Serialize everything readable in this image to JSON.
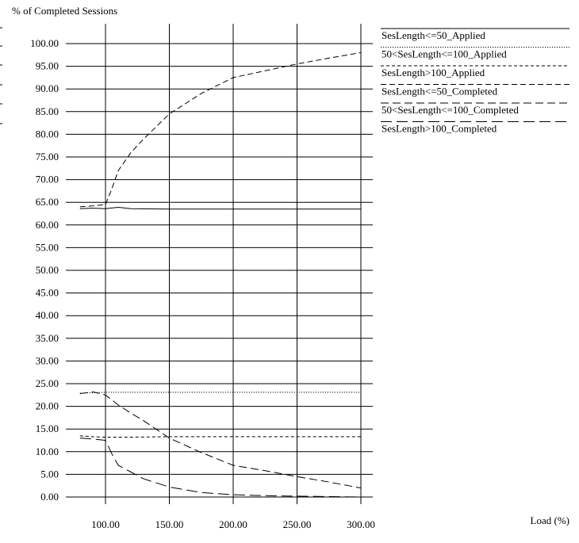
{
  "chart_data": {
    "type": "line",
    "title": "",
    "ylabel": "% of Completed Sessions",
    "xlabel": "Load (%)",
    "xlim": [
      72,
      305
    ],
    "ylim": [
      -2,
      103
    ],
    "x_ticks": [
      "100.00",
      "150.00",
      "200.00",
      "250.00",
      "300.00"
    ],
    "x_tick_values": [
      100,
      150,
      200,
      250,
      300
    ],
    "y_ticks": [
      "100.00",
      "95.00",
      "90.00",
      "85.00",
      "80.00",
      "75.00",
      "70.00",
      "65.00",
      "60.00",
      "55.00",
      "50.00",
      "45.00",
      "40.00",
      "35.00",
      "30.00",
      "25.00",
      "20.00",
      "15.00",
      "10.00",
      "5.00",
      "0.00"
    ],
    "y_tick_values": [
      100,
      95,
      90,
      85,
      80,
      75,
      70,
      65,
      60,
      55,
      50,
      45,
      40,
      35,
      30,
      25,
      20,
      15,
      10,
      5,
      0
    ],
    "grid": "vertical and horizontal",
    "legend_position": "right",
    "series": [
      {
        "name": "SesLength<=50_Applied",
        "style": "solid",
        "x": [
          80,
          90,
          100,
          110,
          120,
          150,
          200,
          250,
          300
        ],
        "y": [
          63.6,
          63.7,
          63.6,
          63.9,
          63.6,
          63.5,
          63.5,
          63.5,
          63.5
        ]
      },
      {
        "name": "50<SesLength<=100_Applied",
        "style": "dotted",
        "x": [
          80,
          90,
          100,
          120,
          150,
          200,
          250,
          300
        ],
        "y": [
          22.9,
          23.0,
          23.1,
          23.1,
          23.1,
          23.1,
          23.1,
          23.1
        ]
      },
      {
        "name": "SesLength>100_Applied",
        "style": "short-dash",
        "x": [
          80,
          90,
          100,
          120,
          150,
          200,
          250,
          300
        ],
        "y": [
          13.5,
          13.3,
          13.2,
          13.2,
          13.3,
          13.3,
          13.3,
          13.3
        ]
      },
      {
        "name": "SesLength<=50_Completed",
        "style": "dash",
        "x": [
          80,
          90,
          100,
          105,
          110,
          120,
          130,
          150,
          175,
          200,
          225,
          250,
          275,
          300
        ],
        "y": [
          64.0,
          64.2,
          64.5,
          68.0,
          72.0,
          76.0,
          79.0,
          84.5,
          89.0,
          92.5,
          94.0,
          95.5,
          96.8,
          98.0
        ]
      },
      {
        "name": "50<SesLength<=100_Completed",
        "style": "long-dash",
        "x": [
          80,
          90,
          100,
          110,
          120,
          130,
          150,
          175,
          200,
          225,
          250,
          275,
          300
        ],
        "y": [
          22.8,
          23.2,
          22.5,
          20.3,
          18.5,
          16.8,
          13.0,
          9.8,
          7.0,
          5.8,
          4.5,
          3.3,
          2.0
        ]
      },
      {
        "name": "SesLength>100_Completed",
        "style": "longer-dash",
        "x": [
          80,
          90,
          100,
          105,
          110,
          120,
          130,
          150,
          175,
          200,
          225,
          250,
          275,
          300
        ],
        "y": [
          13.0,
          12.8,
          12.5,
          9.5,
          7.0,
          5.5,
          4.0,
          2.2,
          1.0,
          0.5,
          0.3,
          0.2,
          0.1,
          0.0
        ]
      }
    ]
  }
}
